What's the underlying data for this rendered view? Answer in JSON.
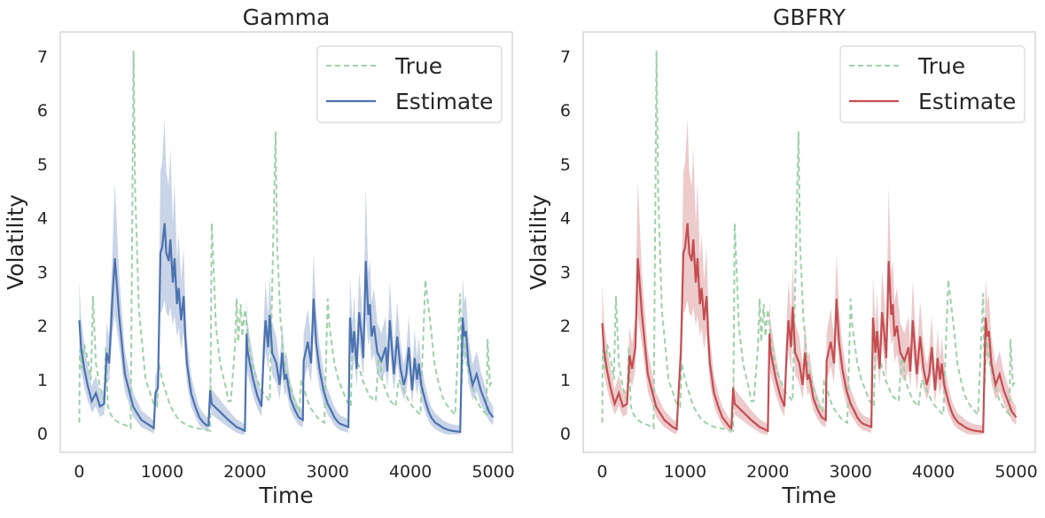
{
  "chart_data": [
    {
      "type": "line",
      "title": "Gamma",
      "xlabel": "Time",
      "ylabel": "Volatility",
      "xlim": [
        -230,
        5230
      ],
      "ylim": [
        -0.35,
        7.45
      ],
      "xticks": [
        "0",
        "1000",
        "2000",
        "3000",
        "4000",
        "5000"
      ],
      "yticks": [
        "0",
        "1",
        "2",
        "3",
        "4",
        "5",
        "6",
        "7"
      ],
      "legend_position": "top-right",
      "grid": false,
      "series": [
        {
          "name": "True",
          "style": "dashed",
          "color": "#9dd0a8",
          "x": [
            0,
            5,
            30,
            60,
            100,
            140,
            165,
            200,
            250,
            300,
            320,
            345,
            380,
            430,
            480,
            560,
            620,
            655,
            675,
            720,
            800,
            900,
            940,
            960,
            1000,
            1100,
            1200,
            1300,
            1400,
            1500,
            1580,
            1600,
            1650,
            1700,
            1770,
            1800,
            1830,
            1880,
            1900,
            1920,
            1950,
            1970,
            2000,
            2050,
            2100,
            2200,
            2300,
            2370,
            2390,
            2430,
            2480,
            2560,
            2620,
            2660,
            2680,
            2720,
            2780,
            2850,
            2900,
            2960,
            3000,
            3020,
            3080,
            3130,
            3180,
            3230,
            3280,
            3300,
            3350,
            3420,
            3460,
            3500,
            3580,
            3620,
            3660,
            3700,
            3760,
            3820,
            3860,
            3920,
            3980,
            4050,
            4120,
            4180,
            4250,
            4290,
            4330,
            4380,
            4430,
            4480,
            4540,
            4600,
            4620,
            4640,
            4680,
            4750,
            4800,
            4860,
            4920,
            4930,
            4960,
            5000
          ],
          "values": [
            0.2,
            1.55,
            1.2,
            1.65,
            1.4,
            1.0,
            2.55,
            1.3,
            0.85,
            0.6,
            1.6,
            0.5,
            0.35,
            0.25,
            0.2,
            0.15,
            0.1,
            7.1,
            4.5,
            2.3,
            1.0,
            0.55,
            0.5,
            1.3,
            1.0,
            0.5,
            0.25,
            0.15,
            0.1,
            0.08,
            0.05,
            3.9,
            2.0,
            1.3,
            0.85,
            0.6,
            0.6,
            1.6,
            2.5,
            1.7,
            2.4,
            1.8,
            2.3,
            1.6,
            1.2,
            0.8,
            0.6,
            5.6,
            3.5,
            2.1,
            1.3,
            0.8,
            0.5,
            0.4,
            1.0,
            0.8,
            0.5,
            0.35,
            0.25,
            0.2,
            2.5,
            2.0,
            1.3,
            1.0,
            0.8,
            0.6,
            0.5,
            1.9,
            1.4,
            1.0,
            0.85,
            0.7,
            0.6,
            1.5,
            1.0,
            0.8,
            0.6,
            0.5,
            1.0,
            0.8,
            0.6,
            0.45,
            0.35,
            2.85,
            1.9,
            1.3,
            1.0,
            0.7,
            0.55,
            0.45,
            0.35,
            2.6,
            0.9,
            1.8,
            1.3,
            0.85,
            0.6,
            0.45,
            0.35,
            1.75,
            0.9,
            1.0
          ]
        },
        {
          "name": "Estimate",
          "style": "solid",
          "color": "#4c72b0",
          "band_color": "#4c72b0",
          "x": [
            0,
            20,
            60,
            100,
            150,
            200,
            250,
            300,
            330,
            360,
            400,
            430,
            480,
            550,
            650,
            750,
            850,
            900,
            920,
            950,
            980,
            1000,
            1030,
            1050,
            1080,
            1100,
            1130,
            1150,
            1180,
            1200,
            1230,
            1260,
            1280,
            1300,
            1350,
            1400,
            1450,
            1500,
            1540,
            1560,
            1580,
            1600,
            1700,
            1800,
            1900,
            1960,
            1980,
            2000,
            2020,
            2030,
            2060,
            2100,
            2150,
            2200,
            2230,
            2250,
            2280,
            2300,
            2330,
            2380,
            2420,
            2450,
            2480,
            2500,
            2550,
            2600,
            2650,
            2700,
            2710,
            2760,
            2800,
            2830,
            2860,
            2900,
            2950,
            3000,
            3050,
            3080,
            3120,
            3150,
            3200,
            3250,
            3270,
            3300,
            3320,
            3350,
            3380,
            3410,
            3430,
            3460,
            3490,
            3510,
            3530,
            3560,
            3600,
            3650,
            3700,
            3720,
            3750,
            3800,
            3840,
            3880,
            3920,
            3950,
            3980,
            4020,
            4050,
            4080,
            4100,
            4130,
            4180,
            4220,
            4250,
            4300,
            4350,
            4400,
            4450,
            4500,
            4550,
            4600,
            4630,
            4650,
            4670,
            4700,
            4750,
            4800,
            4850,
            4900,
            4950,
            5000
          ],
          "values": [
            2.1,
            1.6,
            1.2,
            0.9,
            0.6,
            0.75,
            0.5,
            0.55,
            1.5,
            1.3,
            2.5,
            3.25,
            2.2,
            1.1,
            0.5,
            0.25,
            0.15,
            0.1,
            0.75,
            0.85,
            3.35,
            3.45,
            3.9,
            3.35,
            3.2,
            3.6,
            2.8,
            3.25,
            2.4,
            2.7,
            2.1,
            2.55,
            1.8,
            1.3,
            0.75,
            0.5,
            0.3,
            0.2,
            0.15,
            0.15,
            0.8,
            0.55,
            0.4,
            0.25,
            0.12,
            0.08,
            0.06,
            0.05,
            1.85,
            1.55,
            1.3,
            1.0,
            0.7,
            0.5,
            1.6,
            2.1,
            1.6,
            2.2,
            1.5,
            1.3,
            0.9,
            1.5,
            1.0,
            1.1,
            0.65,
            0.45,
            0.3,
            0.25,
            1.35,
            1.7,
            1.3,
            2.5,
            1.7,
            1.2,
            0.8,
            0.55,
            0.4,
            0.3,
            0.22,
            0.18,
            0.15,
            0.12,
            2.15,
            1.5,
            1.9,
            1.2,
            2.25,
            1.8,
            1.4,
            3.2,
            2.2,
            2.4,
            1.8,
            2.0,
            1.5,
            1.35,
            1.6,
            1.15,
            2.1,
            1.1,
            1.8,
            1.2,
            0.9,
            1.1,
            1.6,
            0.8,
            1.4,
            1.0,
            1.3,
            0.9,
            0.6,
            0.4,
            0.3,
            0.2,
            0.15,
            0.1,
            0.07,
            0.05,
            0.04,
            0.03,
            2.15,
            1.8,
            1.9,
            1.3,
            0.9,
            1.1,
            0.8,
            0.6,
            0.4,
            0.3
          ]
        }
      ]
    },
    {
      "type": "line",
      "title": "GBFRY",
      "xlabel": "Time",
      "ylabel": "Volatility",
      "xlim": [
        -230,
        5230
      ],
      "ylim": [
        -0.35,
        7.45
      ],
      "xticks": [
        "0",
        "1000",
        "2000",
        "3000",
        "4000",
        "5000"
      ],
      "yticks": [
        "0",
        "1",
        "2",
        "3",
        "4",
        "5",
        "6",
        "7"
      ],
      "legend_position": "top-right",
      "grid": false,
      "series": [
        {
          "name": "True",
          "style": "dashed",
          "color": "#9dd0a8",
          "x": [
            0,
            5,
            30,
            60,
            100,
            140,
            165,
            200,
            250,
            300,
            320,
            345,
            380,
            430,
            480,
            560,
            620,
            655,
            675,
            720,
            800,
            900,
            940,
            960,
            1000,
            1100,
            1200,
            1300,
            1400,
            1500,
            1580,
            1600,
            1650,
            1700,
            1770,
            1800,
            1830,
            1880,
            1900,
            1920,
            1950,
            1970,
            2000,
            2050,
            2100,
            2200,
            2300,
            2370,
            2390,
            2430,
            2480,
            2560,
            2620,
            2660,
            2680,
            2720,
            2780,
            2850,
            2900,
            2960,
            3000,
            3020,
            3080,
            3130,
            3180,
            3230,
            3280,
            3300,
            3350,
            3420,
            3460,
            3500,
            3580,
            3620,
            3660,
            3700,
            3760,
            3820,
            3860,
            3920,
            3980,
            4050,
            4120,
            4180,
            4250,
            4290,
            4330,
            4380,
            4430,
            4480,
            4540,
            4600,
            4620,
            4640,
            4680,
            4750,
            4800,
            4860,
            4920,
            4930,
            4960,
            5000
          ],
          "values": [
            0.2,
            1.55,
            1.2,
            1.65,
            1.4,
            1.0,
            2.55,
            1.3,
            0.85,
            0.6,
            1.6,
            0.5,
            0.35,
            0.25,
            0.2,
            0.15,
            0.1,
            7.1,
            4.5,
            2.3,
            1.0,
            0.55,
            0.5,
            1.3,
            1.0,
            0.5,
            0.25,
            0.15,
            0.1,
            0.08,
            0.05,
            3.9,
            2.0,
            1.3,
            0.85,
            0.6,
            0.6,
            1.6,
            2.5,
            1.7,
            2.4,
            1.8,
            2.3,
            1.6,
            1.2,
            0.8,
            0.6,
            5.6,
            3.5,
            2.1,
            1.3,
            0.8,
            0.5,
            0.4,
            1.0,
            0.8,
            0.5,
            0.35,
            0.25,
            0.2,
            2.5,
            2.0,
            1.3,
            1.0,
            0.8,
            0.6,
            0.5,
            1.9,
            1.4,
            1.0,
            0.85,
            0.7,
            0.6,
            1.5,
            1.0,
            0.8,
            0.6,
            0.5,
            1.0,
            0.8,
            0.6,
            0.45,
            0.35,
            2.85,
            1.9,
            1.3,
            1.0,
            0.7,
            0.55,
            0.45,
            0.35,
            2.6,
            0.9,
            1.8,
            1.3,
            0.85,
            0.6,
            0.45,
            0.35,
            1.75,
            0.9,
            1.0
          ]
        },
        {
          "name": "Estimate",
          "style": "solid",
          "color": "#c44e52",
          "band_color": "#c44e52",
          "x": [
            0,
            20,
            60,
            100,
            150,
            200,
            250,
            300,
            330,
            360,
            400,
            430,
            480,
            550,
            650,
            750,
            850,
            900,
            920,
            950,
            980,
            1000,
            1030,
            1050,
            1080,
            1100,
            1130,
            1150,
            1180,
            1200,
            1230,
            1260,
            1280,
            1300,
            1350,
            1400,
            1450,
            1500,
            1540,
            1560,
            1580,
            1600,
            1700,
            1800,
            1900,
            1960,
            1980,
            2000,
            2020,
            2030,
            2060,
            2100,
            2150,
            2200,
            2230,
            2250,
            2280,
            2300,
            2330,
            2380,
            2420,
            2450,
            2480,
            2500,
            2550,
            2600,
            2650,
            2700,
            2710,
            2760,
            2800,
            2830,
            2860,
            2900,
            2950,
            3000,
            3050,
            3080,
            3120,
            3150,
            3200,
            3250,
            3270,
            3300,
            3320,
            3350,
            3380,
            3410,
            3430,
            3460,
            3490,
            3510,
            3530,
            3560,
            3600,
            3650,
            3700,
            3720,
            3750,
            3800,
            3840,
            3880,
            3920,
            3950,
            3980,
            4020,
            4050,
            4080,
            4100,
            4130,
            4180,
            4220,
            4250,
            4300,
            4350,
            4400,
            4450,
            4500,
            4550,
            4600,
            4630,
            4650,
            4670,
            4700,
            4750,
            4800,
            4850,
            4900,
            4950,
            5000
          ],
          "values": [
            2.05,
            1.55,
            1.15,
            0.85,
            0.55,
            0.75,
            0.5,
            0.55,
            1.45,
            1.2,
            1.6,
            3.25,
            2.2,
            1.1,
            0.5,
            0.25,
            0.12,
            0.08,
            0.7,
            1.5,
            3.35,
            3.45,
            3.9,
            3.35,
            3.2,
            3.6,
            2.8,
            3.25,
            2.4,
            2.7,
            2.1,
            2.55,
            1.8,
            1.3,
            0.75,
            0.5,
            0.3,
            0.2,
            0.12,
            0.1,
            0.85,
            0.55,
            0.4,
            0.25,
            0.12,
            0.08,
            0.06,
            0.05,
            1.85,
            1.55,
            1.3,
            1.0,
            0.7,
            0.5,
            1.6,
            2.1,
            1.6,
            2.35,
            1.5,
            1.3,
            0.9,
            1.5,
            1.0,
            1.1,
            0.65,
            0.45,
            0.3,
            0.25,
            1.35,
            1.7,
            1.3,
            2.5,
            1.7,
            1.2,
            0.8,
            0.55,
            0.4,
            0.3,
            0.22,
            0.18,
            0.15,
            0.12,
            2.15,
            1.5,
            1.9,
            1.2,
            2.25,
            1.8,
            1.4,
            3.2,
            2.2,
            2.4,
            1.8,
            2.0,
            1.5,
            1.35,
            1.6,
            1.15,
            2.1,
            1.1,
            1.8,
            1.2,
            0.9,
            1.1,
            1.6,
            0.8,
            1.4,
            1.0,
            1.3,
            0.9,
            0.6,
            0.4,
            0.3,
            0.2,
            0.15,
            0.1,
            0.07,
            0.05,
            0.04,
            0.03,
            2.15,
            1.8,
            1.9,
            1.3,
            0.9,
            1.1,
            0.8,
            0.6,
            0.4,
            0.3
          ]
        }
      ]
    }
  ]
}
